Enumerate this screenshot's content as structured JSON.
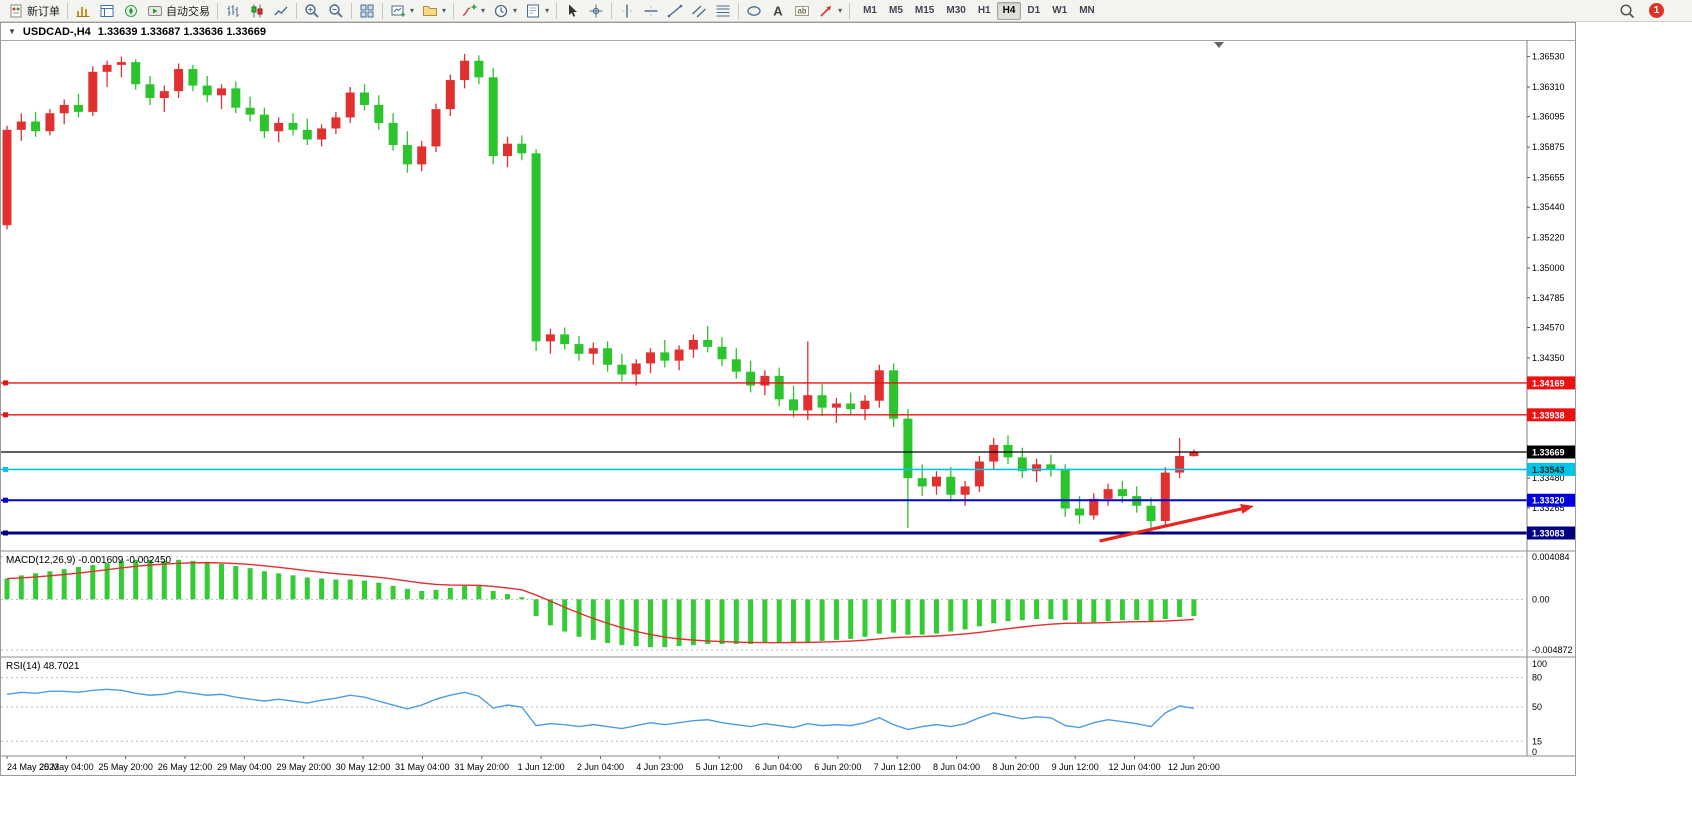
{
  "glyphs": {
    "one_click_arrow": "▼",
    "caret_down": "▾"
  },
  "toolbar": {
    "items": [
      {
        "icon": "new-order",
        "label": "新订单",
        "name": "new-order-button"
      },
      {
        "type": "sep"
      },
      {
        "icon": "market-watch",
        "name": "market-watch-button"
      },
      {
        "icon": "data-window",
        "name": "data-window-button"
      },
      {
        "icon": "navigator",
        "name": "navigator-button"
      },
      {
        "icon": "auto-trading",
        "label": "自动交易",
        "name": "auto-trading-button"
      },
      {
        "type": "sep"
      },
      {
        "icon": "ohlc-bars",
        "name": "bar-chart-mode-button"
      },
      {
        "icon": "candlestick-chart",
        "name": "candlestick-mode-button"
      },
      {
        "icon": "line-chart",
        "name": "line-chart-mode-button"
      },
      {
        "type": "sep"
      },
      {
        "icon": "zoom-in",
        "name": "zoom-in-button"
      },
      {
        "icon": "zoom-out",
        "name": "zoom-out-button"
      },
      {
        "type": "sep"
      },
      {
        "icon": "tile-windows",
        "name": "tile-windows-button"
      },
      {
        "type": "sep"
      },
      {
        "icon": "new-chart",
        "name": "new-chart-button",
        "caret": true
      },
      {
        "icon": "profiles",
        "name": "profiles-button",
        "caret": true
      },
      {
        "type": "sep"
      },
      {
        "icon": "indicators",
        "name": "indicators-button",
        "caret": true
      },
      {
        "icon": "timeframes-clock",
        "name": "periods-button",
        "caret": true
      },
      {
        "icon": "templates",
        "name": "templates-button",
        "caret": true
      },
      {
        "type": "sep"
      },
      {
        "icon": "cursor",
        "name": "cursor-tool-button"
      },
      {
        "icon": "crosshair",
        "name": "crosshair-tool-button"
      },
      {
        "type": "sep"
      },
      {
        "icon": "vertical-line",
        "name": "vertical-line-tool-button"
      },
      {
        "icon": "horizontal-line",
        "name": "horizontal-line-tool-button"
      },
      {
        "icon": "trendline",
        "name": "trendline-tool-button"
      },
      {
        "icon": "equidistant-channel",
        "name": "channel-tool-button"
      },
      {
        "icon": "fibonacci",
        "name": "fibonacci-tool-button"
      },
      {
        "type": "sep"
      },
      {
        "icon": "shapes",
        "name": "shapes-tool-button"
      },
      {
        "icon": "text",
        "name": "text-tool-button"
      },
      {
        "icon": "text-label",
        "name": "text-label-tool-button"
      },
      {
        "icon": "arrow-tools",
        "name": "arrows-tool-button",
        "caret": true
      },
      {
        "type": "sep"
      }
    ],
    "timeframes": {
      "options": [
        "M1",
        "M5",
        "M15",
        "M30",
        "H1",
        "H4",
        "D1",
        "W1",
        "MN"
      ],
      "active": "H4"
    },
    "right": {
      "badge": "1"
    }
  },
  "chart": {
    "title": {
      "symbol": "USDCAD-,H4",
      "ohlc": "1.33639 1.33687 1.33636 1.33669"
    }
  },
  "chart_data": {
    "type": "candlestick",
    "symbol": "USDCAD",
    "timeframe": "H4",
    "colors": {
      "bull": "#e03030",
      "bear": "#2cc42c"
    },
    "price_axis": {
      "top": 1.3665,
      "bottom": 1.3296,
      "ticks": [
        "1.36530",
        "1.36310",
        "1.36095",
        "1.35875",
        "1.35655",
        "1.35440",
        "1.35220",
        "1.35000",
        "1.34785",
        "1.34570",
        "1.34350",
        "1.33480",
        "1.33265"
      ]
    },
    "candles": [
      [
        1.3531,
        1.3603,
        1.3528,
        1.36
      ],
      [
        1.36,
        1.3612,
        1.3592,
        1.3606
      ],
      [
        1.3606,
        1.3613,
        1.3595,
        1.3599
      ],
      [
        1.3599,
        1.3615,
        1.3596,
        1.3612
      ],
      [
        1.3612,
        1.3622,
        1.3604,
        1.3618
      ],
      [
        1.3618,
        1.3626,
        1.3609,
        1.3613
      ],
      [
        1.3613,
        1.3646,
        1.361,
        1.3642
      ],
      [
        1.3642,
        1.365,
        1.3631,
        1.3647
      ],
      [
        1.3647,
        1.3653,
        1.3638,
        1.3649
      ],
      [
        1.3649,
        1.3651,
        1.3629,
        1.3633
      ],
      [
        1.3633,
        1.3639,
        1.3618,
        1.3623
      ],
      [
        1.3623,
        1.3632,
        1.3613,
        1.3628
      ],
      [
        1.3628,
        1.3648,
        1.3623,
        1.3644
      ],
      [
        1.3644,
        1.3647,
        1.3628,
        1.3632
      ],
      [
        1.3632,
        1.3639,
        1.362,
        1.3625
      ],
      [
        1.3625,
        1.3633,
        1.3615,
        1.363
      ],
      [
        1.363,
        1.3635,
        1.3612,
        1.3616
      ],
      [
        1.3616,
        1.3624,
        1.3606,
        1.3611
      ],
      [
        1.3611,
        1.3616,
        1.3594,
        1.3599
      ],
      [
        1.3599,
        1.3609,
        1.3591,
        1.3605
      ],
      [
        1.3605,
        1.3612,
        1.3596,
        1.36
      ],
      [
        1.36,
        1.3608,
        1.3589,
        1.3593
      ],
      [
        1.3593,
        1.3604,
        1.3588,
        1.3601
      ],
      [
        1.3601,
        1.3613,
        1.3597,
        1.3609
      ],
      [
        1.3609,
        1.3631,
        1.3605,
        1.3627
      ],
      [
        1.3627,
        1.3633,
        1.3614,
        1.3618
      ],
      [
        1.3618,
        1.3625,
        1.36,
        1.3605
      ],
      [
        1.3605,
        1.3612,
        1.3585,
        1.3589
      ],
      [
        1.3589,
        1.3599,
        1.3569,
        1.3575
      ],
      [
        1.3575,
        1.3592,
        1.357,
        1.3588
      ],
      [
        1.3588,
        1.3619,
        1.3584,
        1.3615
      ],
      [
        1.3615,
        1.364,
        1.361,
        1.3636
      ],
      [
        1.3636,
        1.3655,
        1.363,
        1.365
      ],
      [
        1.365,
        1.3654,
        1.3633,
        1.3638
      ],
      [
        1.3638,
        1.3645,
        1.3575,
        1.3581
      ],
      [
        1.3581,
        1.3595,
        1.3573,
        1.359
      ],
      [
        1.359,
        1.3596,
        1.3578,
        1.3583
      ],
      [
        1.3583,
        1.3586,
        1.344,
        1.3447
      ],
      [
        1.3447,
        1.3456,
        1.3438,
        1.3452
      ],
      [
        1.3452,
        1.3457,
        1.3441,
        1.3445
      ],
      [
        1.3445,
        1.3451,
        1.3433,
        1.3438
      ],
      [
        1.3438,
        1.3446,
        1.343,
        1.3442
      ],
      [
        1.3442,
        1.3447,
        1.3425,
        1.343
      ],
      [
        1.343,
        1.3438,
        1.3418,
        1.3423
      ],
      [
        1.3423,
        1.3434,
        1.3415,
        1.3431
      ],
      [
        1.3431,
        1.3442,
        1.3424,
        1.3439
      ],
      [
        1.3439,
        1.3448,
        1.3428,
        1.3433
      ],
      [
        1.3433,
        1.3444,
        1.3426,
        1.3441
      ],
      [
        1.3441,
        1.3452,
        1.3435,
        1.3448
      ],
      [
        1.3448,
        1.3458,
        1.3439,
        1.3443
      ],
      [
        1.3443,
        1.345,
        1.3429,
        1.3434
      ],
      [
        1.3434,
        1.3442,
        1.342,
        1.3425
      ],
      [
        1.3425,
        1.3433,
        1.341,
        1.3415
      ],
      [
        1.3415,
        1.3426,
        1.3408,
        1.3422
      ],
      [
        1.3422,
        1.3428,
        1.34,
        1.3405
      ],
      [
        1.3405,
        1.3415,
        1.3392,
        1.3397
      ],
      [
        1.3397,
        1.3447,
        1.339,
        1.3408
      ],
      [
        1.3408,
        1.3416,
        1.3393,
        1.3399
      ],
      [
        1.3399,
        1.3406,
        1.3388,
        1.3402
      ],
      [
        1.3402,
        1.341,
        1.3394,
        1.3398
      ],
      [
        1.3398,
        1.3408,
        1.339,
        1.3404
      ],
      [
        1.3404,
        1.343,
        1.3399,
        1.3426
      ],
      [
        1.3426,
        1.3431,
        1.3385,
        1.3391
      ],
      [
        1.3391,
        1.3398,
        1.3312,
        1.3348
      ],
      [
        1.3348,
        1.3358,
        1.3335,
        1.3342
      ],
      [
        1.3342,
        1.3353,
        1.3336,
        1.3349
      ],
      [
        1.3349,
        1.3356,
        1.3331,
        1.3336
      ],
      [
        1.3336,
        1.3346,
        1.3328,
        1.3342
      ],
      [
        1.3342,
        1.3364,
        1.3338,
        1.336
      ],
      [
        1.336,
        1.3377,
        1.3354,
        1.3372
      ],
      [
        1.3372,
        1.3379,
        1.3358,
        1.3363
      ],
      [
        1.3363,
        1.337,
        1.3348,
        1.3353
      ],
      [
        1.3353,
        1.3362,
        1.3345,
        1.3358
      ],
      [
        1.3358,
        1.3365,
        1.3349,
        1.3354
      ],
      [
        1.3354,
        1.3358,
        1.332,
        1.3326
      ],
      [
        1.3326,
        1.3335,
        1.3315,
        1.3321
      ],
      [
        1.3321,
        1.3337,
        1.3318,
        1.3333
      ],
      [
        1.3333,
        1.3344,
        1.3328,
        1.334
      ],
      [
        1.334,
        1.3346,
        1.333,
        1.3335
      ],
      [
        1.3335,
        1.3342,
        1.3323,
        1.3328
      ],
      [
        1.3328,
        1.3334,
        1.3312,
        1.3317
      ],
      [
        1.3317,
        1.3356,
        1.3313,
        1.3352
      ],
      [
        1.3352,
        1.3377,
        1.3348,
        1.3364
      ],
      [
        1.33639,
        1.33687,
        1.33636,
        1.33669
      ]
    ],
    "hlines": [
      {
        "price": 1.34169,
        "label": "1.34169",
        "color": "#ee1111",
        "width": 1.4,
        "marker": true
      },
      {
        "price": 1.33938,
        "label": "1.33938",
        "color": "#ee1111",
        "width": 1.4,
        "marker": true
      },
      {
        "price": 1.33669,
        "label": "1.33669",
        "color": "#000000",
        "width": 1.2,
        "marker": false
      },
      {
        "price": 1.33543,
        "label": "1.33543",
        "color": "#00c5e8",
        "width": 1.6,
        "marker": true,
        "text_color": "#00222a"
      },
      {
        "price": 1.3332,
        "label": "1.33320",
        "color": "#0000dd",
        "width": 2,
        "marker": true
      },
      {
        "price": 1.33083,
        "label": "1.33083",
        "color": "#000080",
        "width": 3,
        "marker": true
      }
    ],
    "trend_arrow": {
      "from": {
        "index": 76.4,
        "price": 1.33025
      },
      "to": {
        "index": 87.2,
        "price": 1.33278
      },
      "color": "#e8251f",
      "width": 3.2
    },
    "time_ticks": [
      "24 May 2023",
      "25 May 04:00",
      "25 May 20:00",
      "26 May 12:00",
      "29 May 04:00",
      "29 May 20:00",
      "30 May 12:00",
      "31 May 04:00",
      "31 May 20:00",
      "1 Jun 12:00",
      "2 Jun 04:00",
      "4 Jun 23:00",
      "5 Jun 12:00",
      "6 Jun 04:00",
      "6 Jun 20:00",
      "7 Jun 12:00",
      "8 Jun 04:00",
      "8 Jun 20:00",
      "9 Jun 12:00",
      "12 Jun 04:00",
      "12 Jun 20:00"
    ],
    "macd": {
      "label": "MACD(12,26,9)",
      "main_value": "-0.001609",
      "signal_value": "-0.002450",
      "bar_color": "#33cc33",
      "signal_color": "#e03030",
      "range": [
        0.00455,
        -0.00545
      ],
      "scale_labels": [
        "0.004084",
        "0.00",
        "-0.004872"
      ],
      "bars": [
        0.002,
        0.0023,
        0.0025,
        0.0027,
        0.0029,
        0.0031,
        0.0033,
        0.0035,
        0.0037,
        0.0038,
        0.0038,
        0.0037,
        0.0038,
        0.0037,
        0.0036,
        0.0034,
        0.0032,
        0.003,
        0.0027,
        0.0025,
        0.0023,
        0.0021,
        0.002,
        0.0019,
        0.0019,
        0.0018,
        0.0016,
        0.0013,
        0.001,
        0.0008,
        0.0009,
        0.0011,
        0.0013,
        0.0013,
        0.0008,
        0.0005,
        0.0002,
        -0.0016,
        -0.0025,
        -0.0031,
        -0.0036,
        -0.0039,
        -0.0042,
        -0.0044,
        -0.0045,
        -0.0046,
        -0.0046,
        -0.0045,
        -0.0044,
        -0.0043,
        -0.0043,
        -0.0043,
        -0.0043,
        -0.0042,
        -0.0042,
        -0.0041,
        -0.0041,
        -0.004,
        -0.0039,
        -0.0038,
        -0.0036,
        -0.0033,
        -0.0032,
        -0.0034,
        -0.0034,
        -0.0033,
        -0.0031,
        -0.0029,
        -0.0026,
        -0.0023,
        -0.0021,
        -0.002,
        -0.0019,
        -0.0019,
        -0.002,
        -0.0022,
        -0.0022,
        -0.0021,
        -0.002,
        -0.002,
        -0.0021,
        -0.0019,
        -0.0017,
        -0.0016
      ]
    },
    "rsi": {
      "label": "RSI(14)",
      "value": "48.7021",
      "line_color": "#4f9be6",
      "levels": [
        80,
        50,
        15
      ],
      "scale_labels": [
        "100",
        "80",
        "50",
        "15",
        "0"
      ],
      "values": [
        63,
        65,
        64,
        66,
        66,
        65,
        67,
        68,
        67,
        64,
        62,
        63,
        66,
        64,
        62,
        63,
        60,
        58,
        56,
        58,
        56,
        54,
        57,
        59,
        62,
        60,
        56,
        52,
        48,
        52,
        58,
        62,
        65,
        61,
        49,
        52,
        50,
        31,
        33,
        32,
        30,
        32,
        30,
        28,
        31,
        34,
        32,
        34,
        36,
        37,
        34,
        32,
        30,
        33,
        31,
        29,
        33,
        31,
        32,
        31,
        34,
        39,
        32,
        27,
        30,
        32,
        30,
        33,
        39,
        44,
        41,
        38,
        40,
        39,
        31,
        29,
        34,
        37,
        35,
        33,
        30,
        44,
        51,
        48.7
      ]
    }
  }
}
